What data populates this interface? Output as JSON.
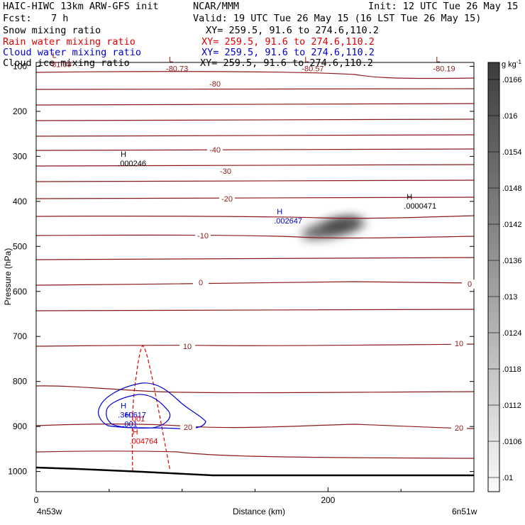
{
  "header": {
    "model": "HAIC-HIWC 13km ARW-GFS init",
    "org": "NCAR/MMM",
    "init": "Init: 12 UTC Tue 26 May 15",
    "fcst_label": "Fcst:",
    "fcst_value": "7 h",
    "valid": "Valid: 19 UTC Tue 26 May 15 (16 LST Tue 26 May 15)",
    "fields": [
      {
        "name": "Snow mixing ratio",
        "xy": "XY= 259.5, 91.6 to 274.6,110.2",
        "color": "#000000"
      },
      {
        "name": "Rain water mixing ratio",
        "xy": "XY= 259.5, 91.6 to 274.6,110.2",
        "color": "#e00000"
      },
      {
        "name": "Cloud water mixing ratio",
        "xy": "XY= 259.5, 91.6 to 274.6,110.2",
        "color": "#0000d0"
      },
      {
        "name": "Cloud ice mixing ratio",
        "xy": "XY= 259.5, 91.6 to 274.6,110.2",
        "color": "#000000"
      }
    ]
  },
  "chart_data": {
    "type": "contour",
    "xlabel": "Distance (km)",
    "ylabel": "Pressure (hPa)",
    "xlim": [
      0,
      300
    ],
    "ylim": [
      1050,
      55
    ],
    "x_ticks": [
      0,
      200
    ],
    "y_ticks": [
      100,
      200,
      300,
      400,
      500,
      600,
      700,
      800,
      900,
      1000
    ],
    "x_endpoints": [
      "4n53w",
      "6n51w"
    ],
    "colorbar": {
      "unit": "g kg",
      "unit_exp": "-1",
      "ticks": [
        ".01",
        ".0106",
        ".0112",
        ".0118",
        ".0124",
        ".013",
        ".0136",
        ".0142",
        ".0148",
        ".0154",
        ".016",
        ".0166"
      ]
    },
    "isotherm_labels": [
      "-80",
      "-40",
      "-30",
      "-20",
      "-10",
      "0",
      "10",
      "20",
      "0",
      "10",
      "20"
    ],
    "extrema": [
      {
        "kind": "L",
        "value": "-81.09",
        "x": 9,
        "p": 95
      },
      {
        "kind": "L",
        "value": "-80.73",
        "x": 89,
        "p": 105
      },
      {
        "kind": "L",
        "value": "-80.57",
        "x": 182,
        "p": 105
      },
      {
        "kind": "L",
        "value": "-80.19",
        "x": 272,
        "p": 105
      },
      {
        "kind": "H",
        "value": ".000246",
        "x": 56,
        "p": 315
      },
      {
        "kind": "H",
        "value": ".002647",
        "x": 163,
        "p": 443
      },
      {
        "kind": "H",
        "value": ".0000471",
        "x": 252,
        "p": 410
      },
      {
        "kind": "H",
        "value": ".360617",
        "x": 56,
        "p": 874
      },
      {
        "kind": "H",
        "value": ".001",
        "x": 59,
        "p": 894
      },
      {
        "kind": "H",
        "value": ".004764",
        "x": 64,
        "p": 932
      }
    ],
    "contour_labels": [
      ".001"
    ],
    "colors": {
      "isotherm": "#8b1a1a",
      "rain": "#e00000",
      "cloud_water": "#0000d0",
      "terrain": "#000000"
    }
  }
}
